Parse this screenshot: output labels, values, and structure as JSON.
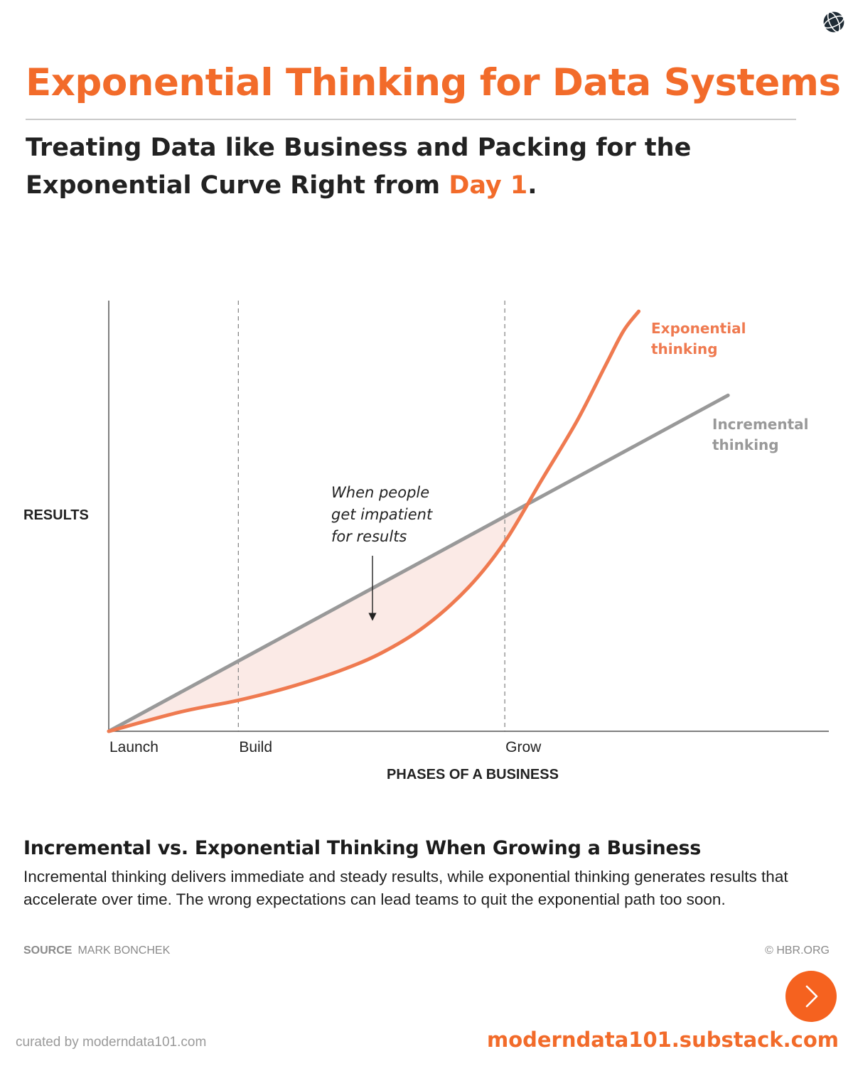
{
  "header": {
    "logo_icon": "globe-icon",
    "title": "Exponential Thinking for Data Systems",
    "subtitle_main": "Treating Data like Business and Packing for the Exponential Curve Right from ",
    "subtitle_highlight": "Day 1",
    "subtitle_end": "."
  },
  "chart_data": {
    "type": "line",
    "title": "Incremental vs. Exponential Thinking When Growing a Business",
    "xlabel": "PHASES OF A BUSINESS",
    "ylabel": "RESULTS",
    "xlim": [
      0,
      10
    ],
    "ylim": [
      0,
      10
    ],
    "grid": false,
    "x_ticks": [
      {
        "label": "Launch",
        "x": 0
      },
      {
        "label": "Build",
        "x": 1.8
      },
      {
        "label": "Grow",
        "x": 5.5
      }
    ],
    "phase_dividers": [
      1.8,
      5.5
    ],
    "series": [
      {
        "name": "Incremental thinking",
        "label_lines": [
          "Incremental",
          "thinking"
        ],
        "color": "#999999",
        "x": [
          0,
          8.6
        ],
        "y": [
          0,
          7.8
        ]
      },
      {
        "name": "Exponential thinking",
        "label_lines": [
          "Exponential",
          "thinking"
        ],
        "color": "#ef7a50",
        "x": [
          0,
          1,
          1.8,
          2.5,
          3.2,
          3.8,
          4.4,
          5,
          5.5,
          6,
          6.5,
          6.9,
          7.15,
          7.36
        ],
        "y": [
          0,
          0.45,
          0.72,
          1.02,
          1.4,
          1.83,
          2.45,
          3.35,
          4.4,
          5.8,
          7.2,
          8.5,
          9.3,
          9.75
        ]
      }
    ],
    "shaded_gap_color": "#fbeae6",
    "annotation": {
      "lines": [
        "When people",
        "get impatient",
        "for results"
      ]
    },
    "footer_text": "Incremental thinking delivers immediate and steady results, while exponential thinking generates results that accelerate over time. The wrong expectations can lead teams to quit the exponential path too soon.",
    "source_label": "SOURCE",
    "source_name": "MARK BONCHEK",
    "copyright": "© HBR.ORG"
  },
  "footer": {
    "next_icon": "chevron-right-icon",
    "curated": "curated by moderndata101.com",
    "site": "moderndata101.substack.com"
  }
}
